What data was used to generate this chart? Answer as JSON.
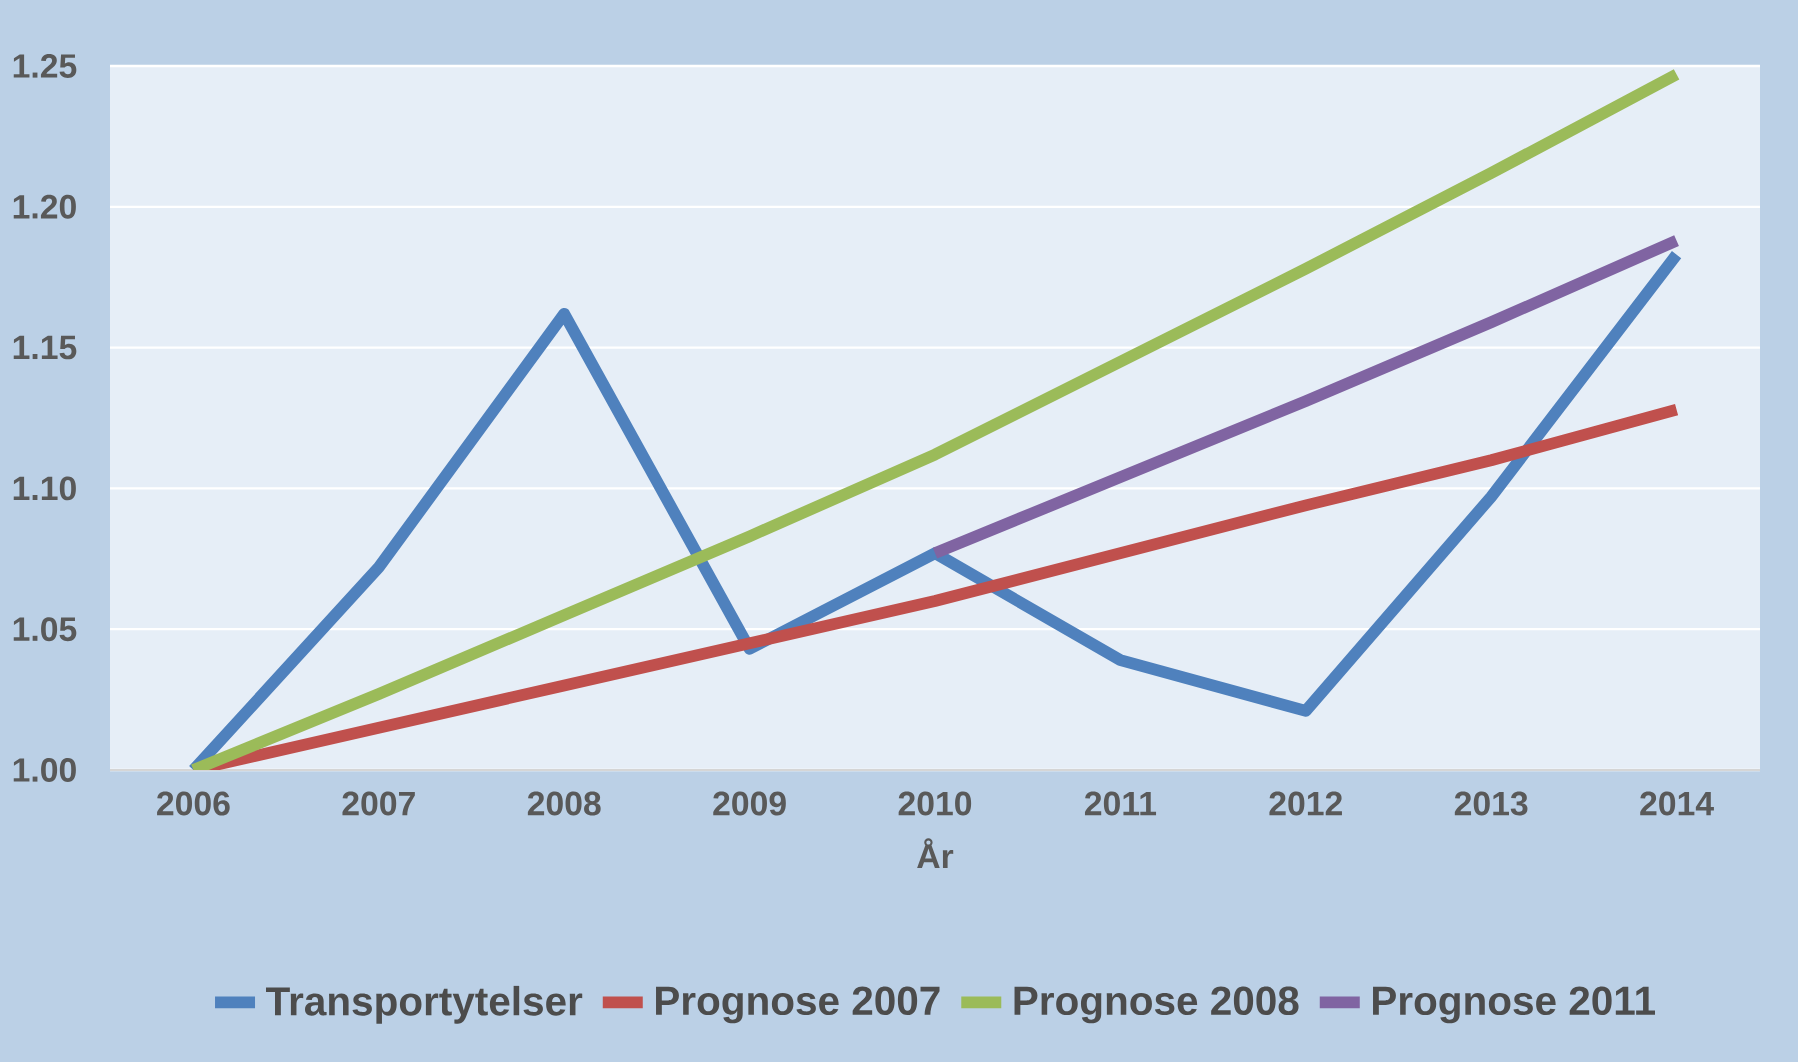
{
  "chart_data": {
    "type": "line",
    "xlabel": "År",
    "categories": [
      "2006",
      "2007",
      "2008",
      "2009",
      "2010",
      "2011",
      "2012",
      "2013",
      "2014"
    ],
    "series": [
      {
        "name": "Transportytelser",
        "color": "#4f81bd",
        "values": [
          1.0,
          1.072,
          1.162,
          1.043,
          1.077,
          1.039,
          1.021,
          1.097,
          1.183
        ]
      },
      {
        "name": "Prognose 2007",
        "color": "#c0504d",
        "values": [
          1.0,
          1.015,
          1.03,
          1.045,
          1.06,
          1.077,
          1.094,
          1.11,
          1.128
        ]
      },
      {
        "name": "Prognose 2008",
        "color": "#9bbb59",
        "values": [
          1.0,
          1.027,
          1.055,
          1.083,
          1.112,
          1.145,
          1.178,
          1.212,
          1.247
        ]
      },
      {
        "name": "Prognose 2011",
        "color": "#8064a2",
        "values": [
          null,
          null,
          null,
          null,
          1.077,
          1.104,
          1.131,
          1.159,
          1.188
        ]
      }
    ],
    "ylim": [
      1.0,
      1.25
    ],
    "yticks": [
      {
        "value": 1.0,
        "label": "1.00"
      },
      {
        "value": 1.05,
        "label": "1.05"
      },
      {
        "value": 1.1,
        "label": "1.10"
      },
      {
        "value": 1.15,
        "label": "1.15"
      },
      {
        "value": 1.2,
        "label": "1.20"
      },
      {
        "value": 1.25,
        "label": "1.25"
      }
    ],
    "grid": "y",
    "legend": "bottom",
    "marker": "none",
    "line_style": "solid"
  }
}
